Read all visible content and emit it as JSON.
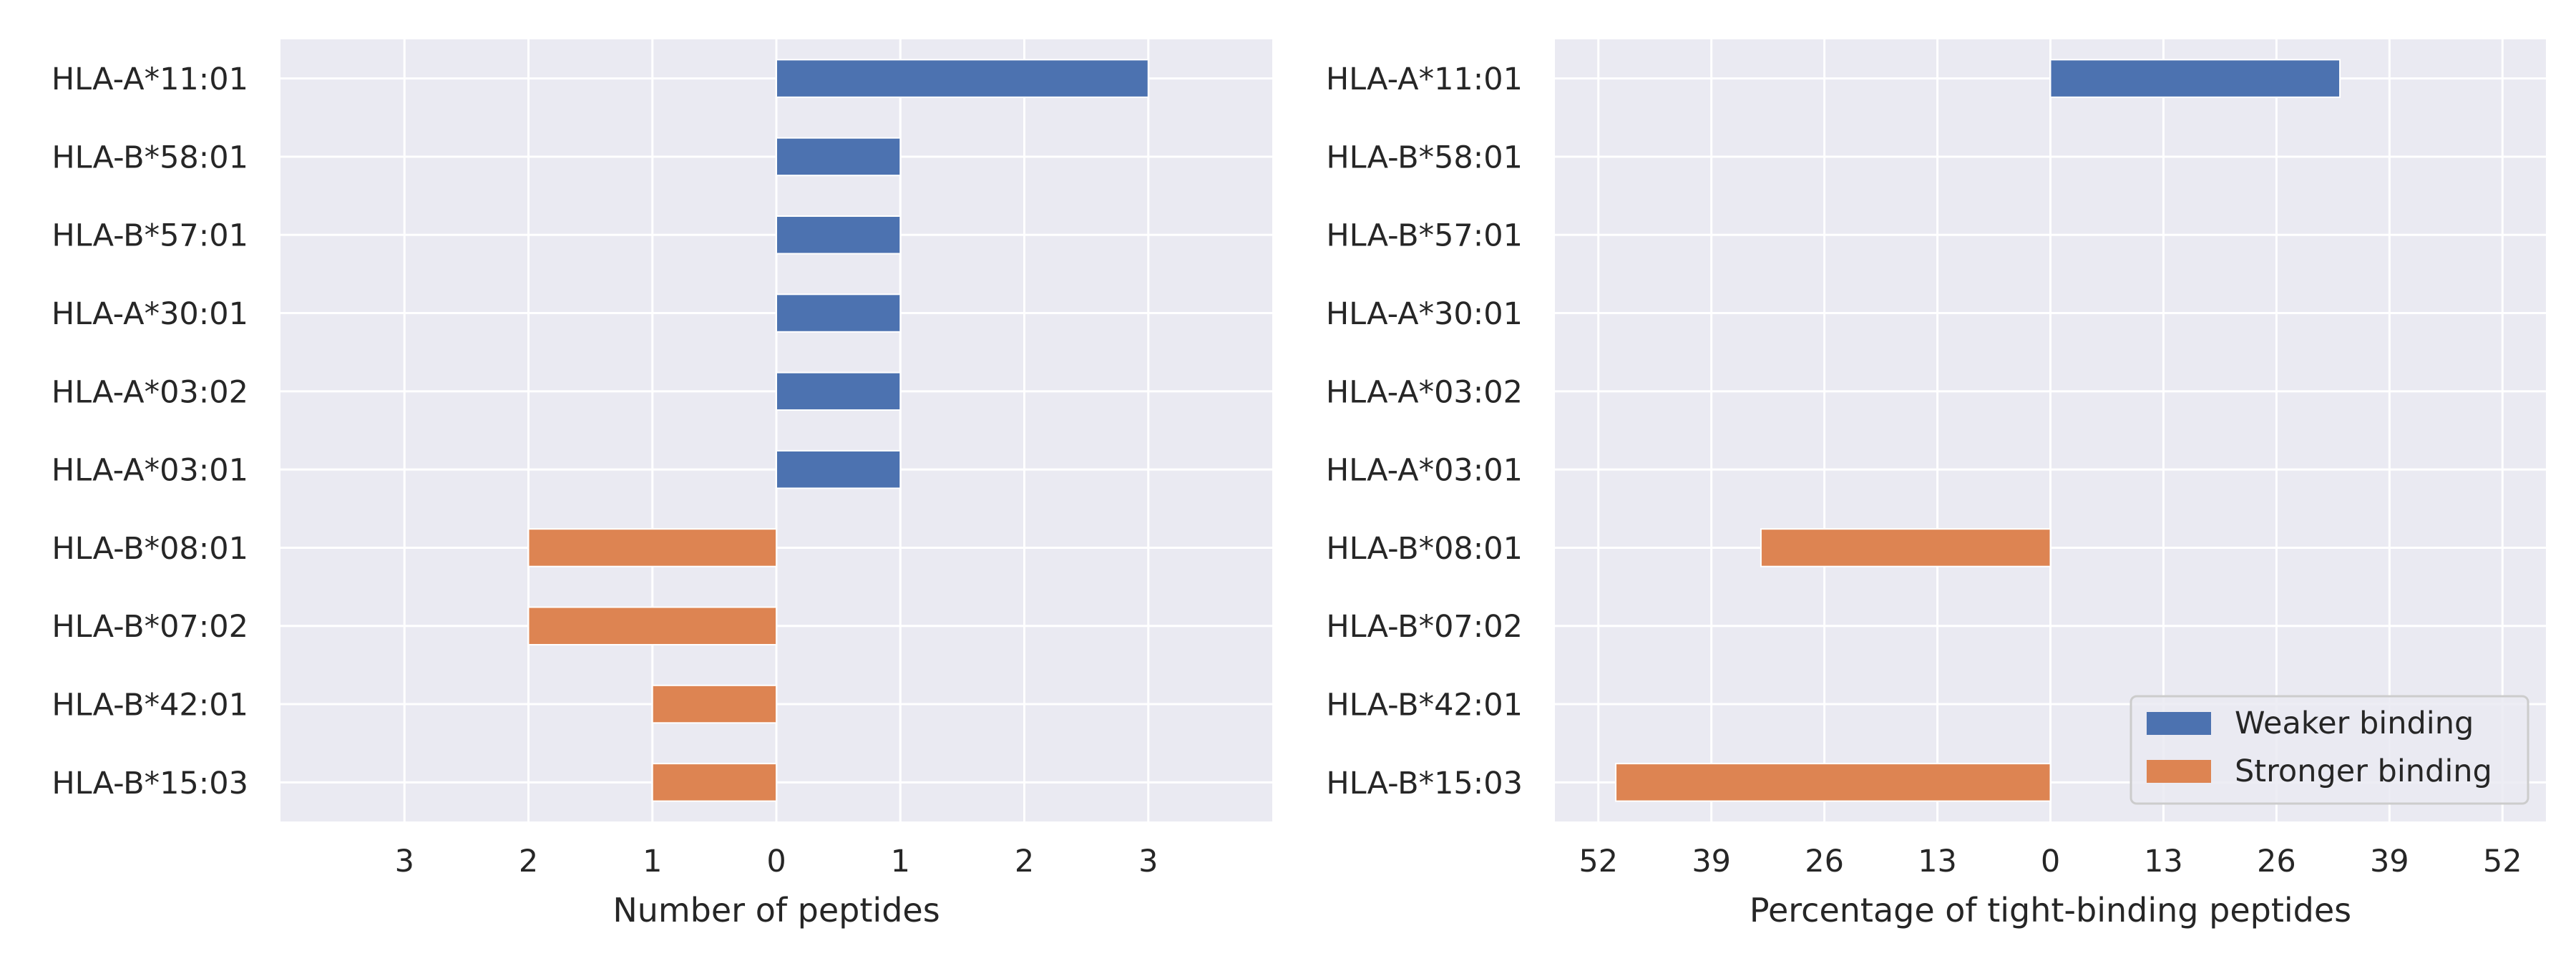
{
  "chart_data": [
    {
      "type": "bar",
      "orientation": "horizontal",
      "diverging": true,
      "categories": [
        "HLA-A*11:01",
        "HLA-B*58:01",
        "HLA-B*57:01",
        "HLA-A*30:01",
        "HLA-A*03:02",
        "HLA-A*03:01",
        "HLA-B*08:01",
        "HLA-B*07:02",
        "HLA-B*42:01",
        "HLA-B*15:03"
      ],
      "series": [
        {
          "name": "Weaker binding",
          "color": "#4c72b0",
          "values": [
            3,
            1,
            1,
            1,
            1,
            1,
            0,
            0,
            0,
            0
          ]
        },
        {
          "name": "Stronger binding",
          "color": "#dd8452",
          "values": [
            0,
            0,
            0,
            0,
            0,
            0,
            -2,
            -2,
            -1,
            -1
          ]
        }
      ],
      "xlabel": "Number of peptides",
      "xlim": [
        -4,
        4
      ],
      "xticks": [
        -3,
        -2,
        -1,
        0,
        1,
        2,
        3
      ],
      "xtick_labels": [
        "3",
        "2",
        "1",
        "0",
        "1",
        "2",
        "3"
      ],
      "grid": true,
      "legend": null
    },
    {
      "type": "bar",
      "orientation": "horizontal",
      "diverging": true,
      "categories": [
        "HLA-A*11:01",
        "HLA-B*58:01",
        "HLA-B*57:01",
        "HLA-A*30:01",
        "HLA-A*03:02",
        "HLA-A*03:01",
        "HLA-B*08:01",
        "HLA-B*07:02",
        "HLA-B*42:01",
        "HLA-B*15:03"
      ],
      "series": [
        {
          "name": "Weaker binding",
          "color": "#4c72b0",
          "values": [
            33.3,
            0,
            0,
            0,
            0,
            0,
            0,
            0,
            0,
            0
          ]
        },
        {
          "name": "Stronger binding",
          "color": "#dd8452",
          "values": [
            0,
            0,
            0,
            0,
            0,
            0,
            -33.3,
            0,
            0,
            -50
          ]
        }
      ],
      "xlabel": "Percentage of tight-binding peptides",
      "xlim": [
        -57,
        57
      ],
      "xticks": [
        -52,
        -39,
        -26,
        -13,
        0,
        13,
        26,
        39,
        52
      ],
      "xtick_labels": [
        "52",
        "39",
        "26",
        "13",
        "0",
        "13",
        "26",
        "39",
        "52"
      ],
      "grid": true,
      "legend": "lower right"
    }
  ]
}
